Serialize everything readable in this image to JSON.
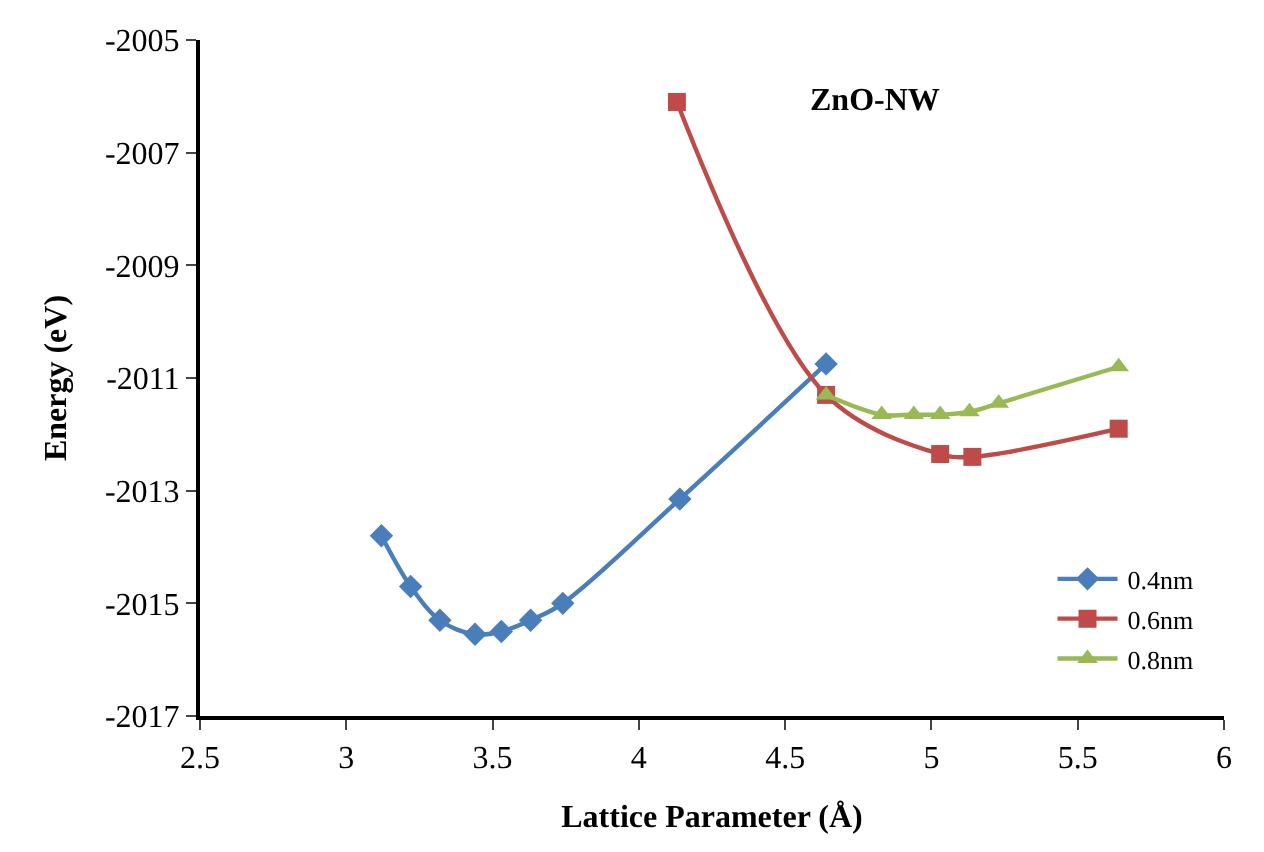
{
  "chart_data": {
    "type": "line",
    "xlabel": "Lattice Parameter (Å)",
    "ylabel": "Energy (eV)",
    "annotations": [
      "ZnO-NW"
    ],
    "xlim": [
      2.5,
      6
    ],
    "xticks": [
      2.5,
      3,
      3.5,
      4,
      4.5,
      5,
      5.5,
      6
    ],
    "ylim": [
      -2017,
      -2005
    ],
    "yticks": [
      -2017,
      -2015,
      -2013,
      -2011,
      -2009,
      -2007,
      -2005
    ],
    "legend": "bottom right",
    "series": [
      {
        "name": "0.4nm",
        "color": "#4a7ebb",
        "marker": "diamond",
        "x": [
          3.12,
          3.22,
          3.32,
          3.44,
          3.53,
          3.63,
          3.74,
          4.14,
          4.64
        ],
        "values": [
          -2013.8,
          -2014.7,
          -2015.3,
          -2015.55,
          -2015.5,
          -2015.3,
          -2015.0,
          -2013.15,
          -2010.75
        ]
      },
      {
        "name": "0.6nm",
        "color": "#be4b48",
        "marker": "square",
        "x": [
          4.13,
          4.64,
          5.03,
          5.14,
          5.64
        ],
        "values": [
          -2006.1,
          -2011.3,
          -2012.35,
          -2012.4,
          -2011.9
        ]
      },
      {
        "name": "0.8nm",
        "color": "#98b954",
        "marker": "triangle",
        "x": [
          4.64,
          4.83,
          4.94,
          5.03,
          5.13,
          5.23,
          5.64
        ],
        "values": [
          -2011.3,
          -2011.65,
          -2011.65,
          -2011.65,
          -2011.6,
          -2011.45,
          -2010.8
        ]
      }
    ]
  }
}
